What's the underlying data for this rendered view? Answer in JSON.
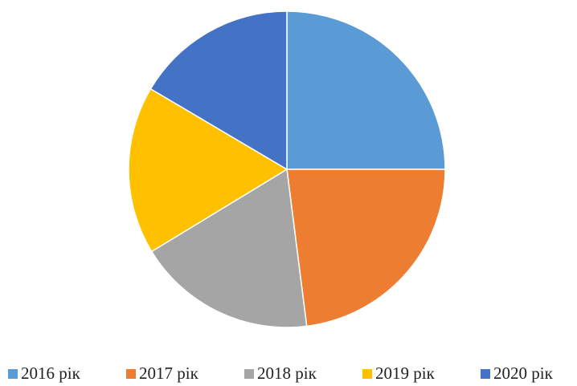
{
  "chart_data": {
    "type": "pie",
    "categories": [
      "2016 рік",
      "2017 рік",
      "2018 рік",
      "2019 рік",
      "2020 рік"
    ],
    "values": [
      25,
      23,
      18.3,
      17.2,
      16.5
    ],
    "colors": [
      "#5b9bd5",
      "#ed7d31",
      "#a5a5a5",
      "#ffc000",
      "#4472c4"
    ],
    "legend": "bottom"
  }
}
